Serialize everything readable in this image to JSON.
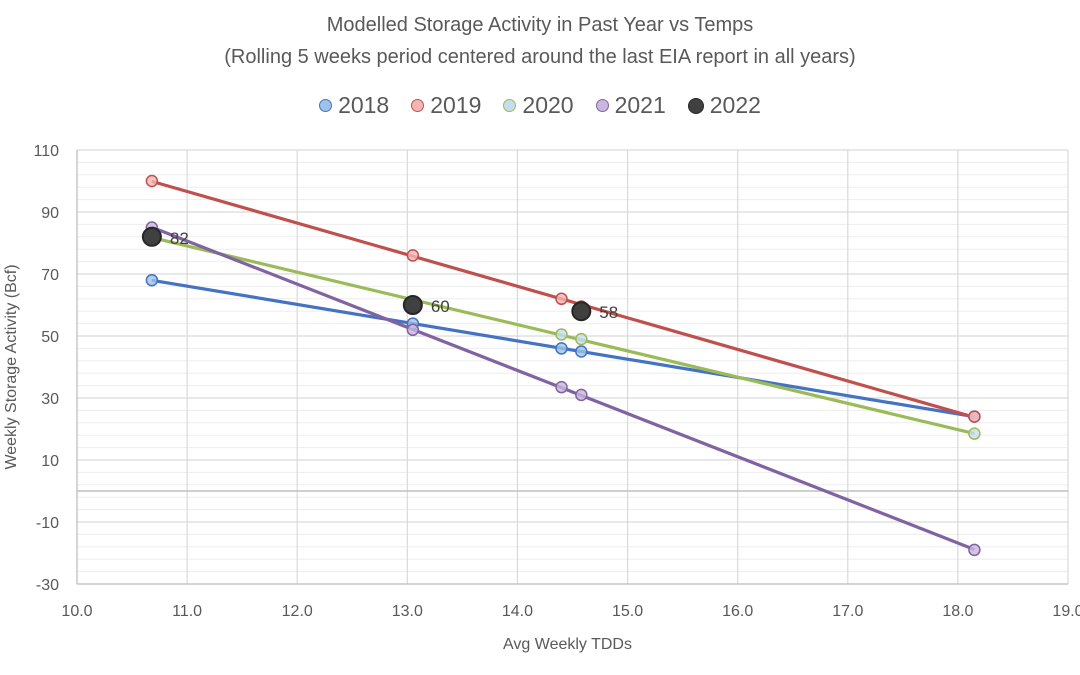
{
  "chart_data": {
    "type": "scatter",
    "title": "Modelled Storage Activity in Past Year vs Temps",
    "subtitle": "(Rolling 5 weeks period centered around the last EIA report in all years)",
    "xlabel": "Avg Weekly TDDs",
    "ylabel": "Weekly Storage  Activity (Bcf)",
    "xlim": [
      10,
      19
    ],
    "ylim": [
      -30,
      110
    ],
    "x_ticks": [
      "10.0",
      "11.0",
      "12.0",
      "13.0",
      "14.0",
      "15.0",
      "16.0",
      "17.0",
      "18.0",
      "19.0"
    ],
    "y_ticks": [
      "110",
      "90",
      "70",
      "50",
      "30",
      "10",
      "-10",
      "-30"
    ],
    "x_tick_values": [
      10,
      11,
      12,
      13,
      14,
      15,
      16,
      17,
      18,
      19
    ],
    "y_tick_values": [
      110,
      90,
      70,
      50,
      30,
      10,
      -10,
      -30
    ],
    "grid": true,
    "legend_position": "top",
    "series": [
      {
        "name": "2018",
        "color": "#4472C4",
        "fill": "#9DC3E6",
        "trendline": true,
        "points": [
          [
            10.68,
            68
          ],
          [
            13.05,
            54
          ],
          [
            14.4,
            46
          ],
          [
            14.58,
            45
          ],
          [
            18.15,
            24
          ]
        ]
      },
      {
        "name": "2019",
        "color": "#C0504D",
        "fill": "#F4B6B4",
        "trendline": true,
        "points": [
          [
            10.68,
            100
          ],
          [
            13.05,
            76
          ],
          [
            14.4,
            62
          ],
          [
            14.58,
            59.5
          ],
          [
            18.15,
            24
          ]
        ]
      },
      {
        "name": "2020",
        "color": "#9BBB59",
        "fill": "#C5DDEF",
        "trendline": true,
        "points": [
          [
            10.68,
            82
          ],
          [
            13.05,
            61
          ],
          [
            14.4,
            50.5
          ],
          [
            14.58,
            49
          ],
          [
            18.15,
            18.5
          ]
        ]
      },
      {
        "name": "2021",
        "color": "#8064A2",
        "fill": "#C9B7DD",
        "trendline": true,
        "points": [
          [
            10.68,
            85
          ],
          [
            13.05,
            52
          ],
          [
            14.4,
            33.5
          ],
          [
            14.58,
            31
          ],
          [
            18.15,
            -19
          ]
        ]
      },
      {
        "name": "2022",
        "color": "#262626",
        "fill": "#404040",
        "trendline": false,
        "points": [
          [
            10.68,
            82
          ],
          [
            13.05,
            60
          ],
          [
            14.58,
            58
          ]
        ],
        "labels": [
          "82",
          "60",
          "58"
        ]
      }
    ]
  }
}
